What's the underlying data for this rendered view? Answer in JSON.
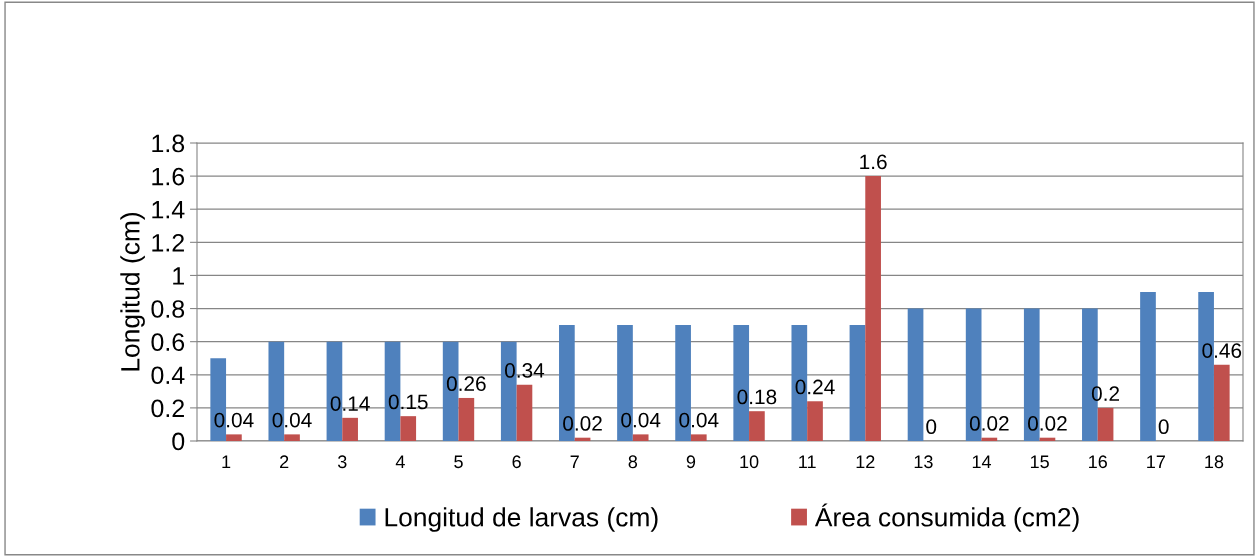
{
  "chart_data": {
    "type": "bar",
    "ylabel": "Longitud (cm)",
    "categories": [
      "1",
      "2",
      "3",
      "4",
      "5",
      "6",
      "7",
      "8",
      "9",
      "10",
      "11",
      "12",
      "13",
      "14",
      "15",
      "16",
      "17",
      "18"
    ],
    "series": [
      {
        "name": "Longitud de larvas (cm)",
        "color": "#4f81bd",
        "values": [
          0.5,
          0.6,
          0.6,
          0.6,
          0.6,
          0.6,
          0.7,
          0.7,
          0.7,
          0.7,
          0.7,
          0.7,
          0.8,
          0.8,
          0.8,
          0.8,
          0.9,
          0.9
        ]
      },
      {
        "name": "Área consumida (cm2)",
        "color": "#c0504d",
        "values": [
          0.04,
          0.04,
          0.14,
          0.15,
          0.26,
          0.34,
          0.02,
          0.04,
          0.04,
          0.18,
          0.24,
          1.6,
          0,
          0.02,
          0.02,
          0.2,
          0,
          0.46
        ],
        "value_labels": [
          "0.04",
          "0.04",
          "0.14",
          "0.15",
          "0.26",
          "0.34",
          "0.02",
          "0.04",
          "0.04",
          "0.18",
          "0.24",
          "1.6",
          "0",
          "0.02",
          "0.02",
          "0.2",
          "0",
          "0.46"
        ]
      }
    ],
    "ylim": [
      0,
      1.8
    ],
    "yticks": [
      0,
      {
        "value": 0.2,
        "label": "0.2"
      },
      {
        "value": 0.4,
        "label": "0.4"
      },
      {
        "value": 0.6,
        "label": "0.6"
      },
      {
        "value": 0.8,
        "label": "0.8"
      },
      1,
      {
        "value": 1.2,
        "label": "1.2"
      },
      {
        "value": 1.4,
        "label": "1.4"
      },
      {
        "value": 1.6,
        "label": "1.6"
      },
      {
        "value": 1.8,
        "label": "1.8"
      }
    ],
    "grid": "y",
    "legend": "bottom"
  }
}
